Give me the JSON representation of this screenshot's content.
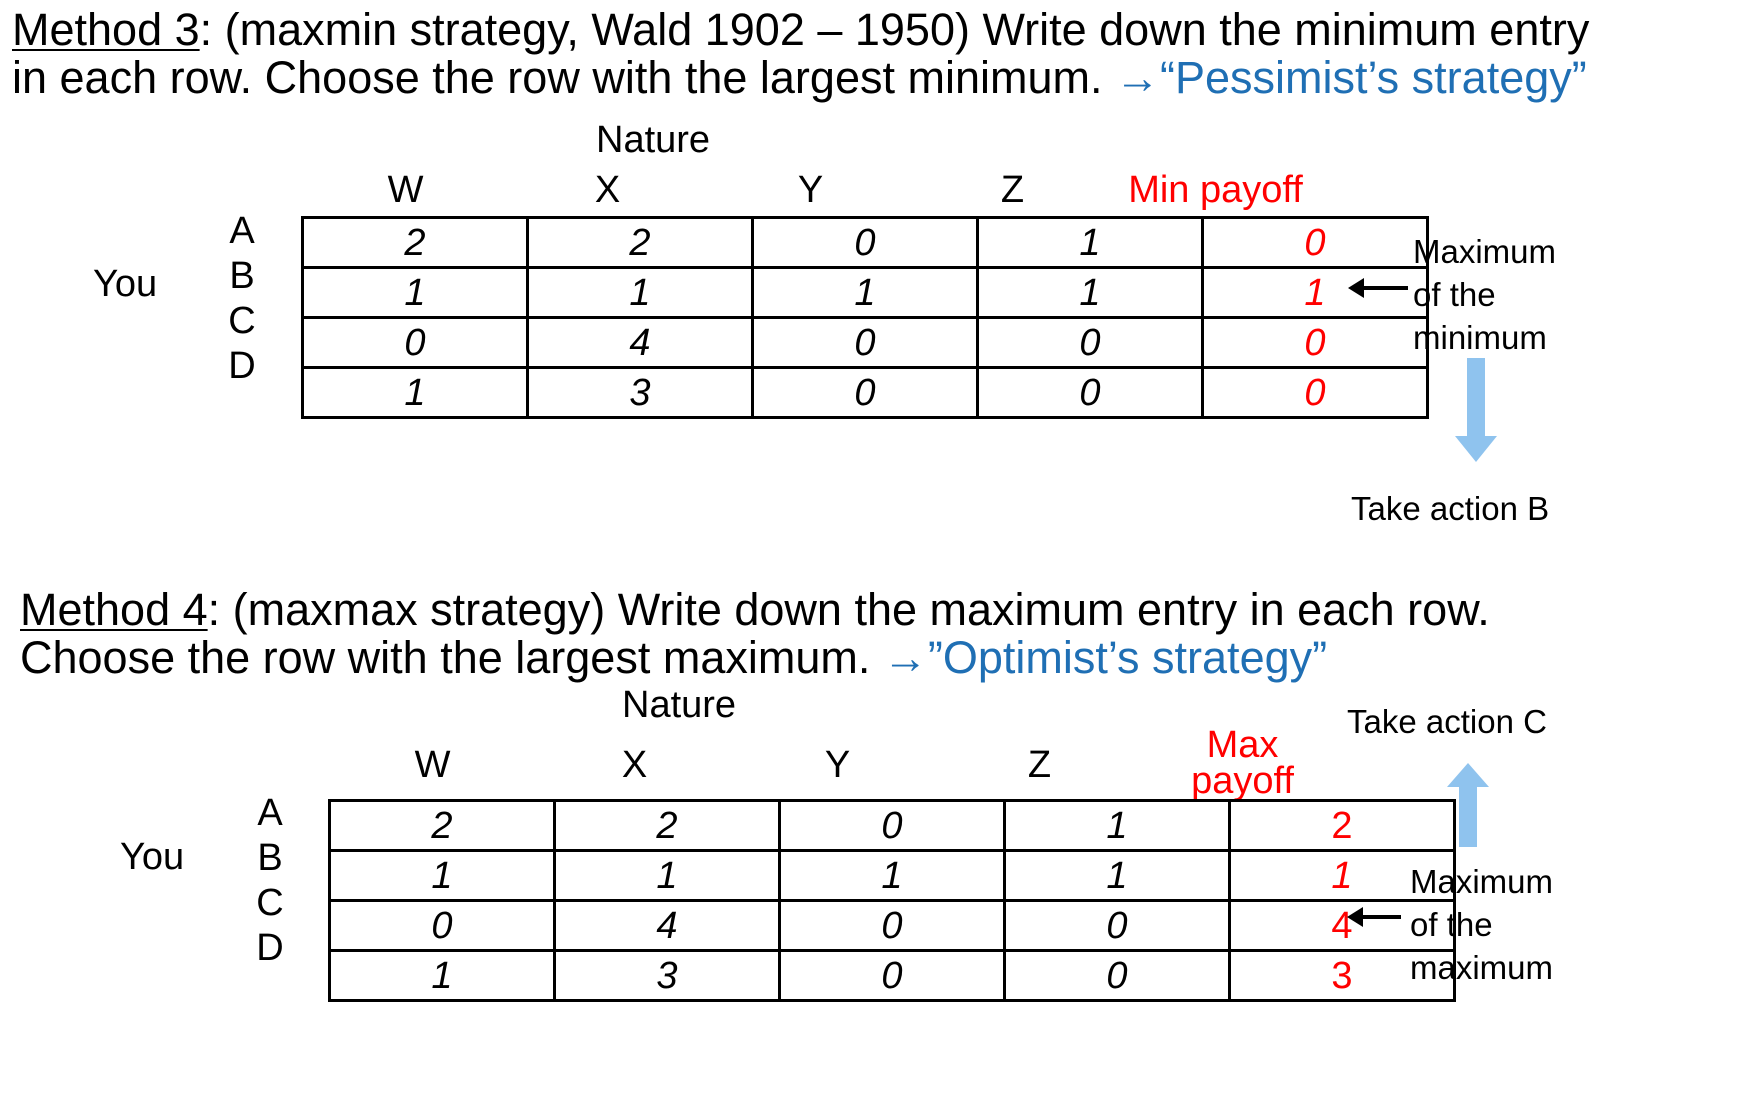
{
  "method3": {
    "title_underlined": "Method 3",
    "line1_rest": ": (maxmin strategy, Wald 1902 – 1950) Write down the minimum entry",
    "line2": "in each row. Choose the row with the largest minimum. ",
    "tag": "→“Pessimist’s strategy”",
    "nature_label": "Nature",
    "player_label": "You",
    "row_labels": [
      "A",
      "B",
      "C",
      "D"
    ],
    "columns": [
      "W",
      "X",
      "Y",
      "Z"
    ],
    "extra_header": "Min payoff",
    "rows": [
      [
        "2",
        "2",
        "0",
        "1",
        "0"
      ],
      [
        "1",
        "1",
        "1",
        "1",
        "1"
      ],
      [
        "0",
        "4",
        "0",
        "0",
        "0"
      ],
      [
        "1",
        "3",
        "0",
        "0",
        "0"
      ]
    ],
    "note_lines": [
      "Maximum",
      "of the",
      "minimum"
    ],
    "action": "Take action B"
  },
  "method4": {
    "title_underlined": "Method 4",
    "line1_rest": ": (maxmax strategy) Write down the maximum entry in each row.",
    "line2": "Choose the row with the largest maximum. ",
    "tag": "→”Optimist’s strategy”",
    "nature_label": "Nature",
    "player_label": "You",
    "row_labels": [
      "A",
      "B",
      "C",
      "D"
    ],
    "columns": [
      "W",
      "X",
      "Y",
      "Z"
    ],
    "extra_header_lines": [
      "Max",
      "payoff"
    ],
    "rows": [
      [
        "2",
        "2",
        "0",
        "1",
        "2"
      ],
      [
        "1",
        "1",
        "1",
        "1",
        "1"
      ],
      [
        "0",
        "4",
        "0",
        "0",
        "4"
      ],
      [
        "1",
        "3",
        "0",
        "0",
        "3"
      ]
    ],
    "note_lines": [
      "Maximum",
      "of the",
      "maximum"
    ],
    "action": "Take action C"
  },
  "colors": {
    "highlight": "#ff0000",
    "accent_blue": "#1f6fb4",
    "arrow_blue": "#8fc3ee"
  }
}
